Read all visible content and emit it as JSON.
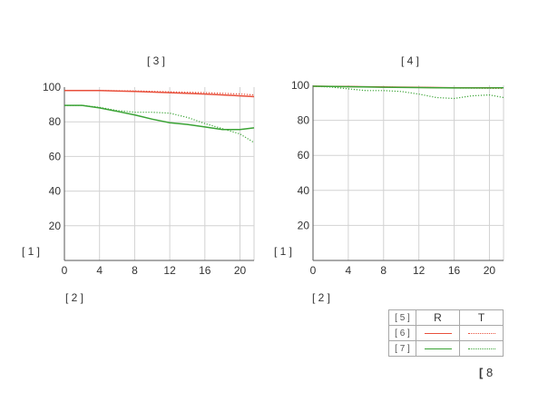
{
  "chart_data": [
    {
      "type": "line",
      "title": "[ 3 ]",
      "xlabel": "[ 2 ]",
      "ylabel": "[ 1 ]",
      "xlim": [
        0,
        21.6
      ],
      "ylim": [
        0,
        100
      ],
      "xticks": [
        0,
        4,
        8,
        12,
        16,
        20
      ],
      "yticks": [
        20,
        40,
        60,
        80,
        100
      ],
      "grid": true,
      "series": [
        {
          "name": "[ 6 ] R",
          "color": "#e8503c",
          "style": "solid",
          "x": [
            0,
            4,
            8,
            12,
            16,
            20,
            21.6
          ],
          "y": [
            98,
            98,
            97.5,
            96.8,
            96,
            95,
            94.5
          ]
        },
        {
          "name": "[ 6 ] T",
          "color": "#e8503c",
          "style": "dotted",
          "x": [
            0,
            4,
            8,
            12,
            16,
            20,
            21.6
          ],
          "y": [
            98,
            98,
            97.8,
            97.3,
            96.8,
            96,
            95.5
          ]
        },
        {
          "name": "[ 7 ] R",
          "color": "#3aa335",
          "style": "solid",
          "x": [
            0,
            2,
            4,
            6,
            8,
            10,
            12,
            14,
            16,
            18,
            20,
            21.6
          ],
          "y": [
            89.5,
            89.5,
            88,
            86,
            84,
            81.5,
            79.5,
            78.5,
            77,
            75.5,
            75.5,
            76.5
          ]
        },
        {
          "name": "[ 7 ] T",
          "color": "#3aa335",
          "style": "dotted",
          "x": [
            0,
            2,
            4,
            6,
            8,
            10,
            12,
            14,
            16,
            18,
            20,
            21.6
          ],
          "y": [
            89.5,
            89.5,
            88.3,
            86.5,
            85.5,
            85.5,
            85,
            82.5,
            79,
            76,
            73,
            68
          ]
        }
      ]
    },
    {
      "type": "line",
      "title": "[ 4 ]",
      "xlabel": "[ 2 ]",
      "ylabel": "[ 1 ]",
      "xlim": [
        0,
        21.6
      ],
      "ylim": [
        0,
        100
      ],
      "xticks": [
        0,
        4,
        8,
        12,
        16,
        20
      ],
      "yticks": [
        20,
        40,
        60,
        80,
        100
      ],
      "grid": true,
      "series": [
        {
          "name": "[ 6 ] R",
          "color": "#e8503c",
          "style": "solid",
          "x": [
            0,
            4,
            8,
            12,
            16,
            20,
            21.6
          ],
          "y": [
            99.5,
            99.3,
            99,
            98.8,
            98.6,
            98.6,
            98.6
          ]
        },
        {
          "name": "[ 6 ] T",
          "color": "#e8503c",
          "style": "dotted",
          "x": [
            0,
            4,
            8,
            12,
            16,
            20,
            21.6
          ],
          "y": [
            99.5,
            99.3,
            99,
            98.8,
            98.5,
            98.3,
            98.2
          ]
        },
        {
          "name": "[ 7 ] R",
          "color": "#3aa335",
          "style": "solid",
          "x": [
            0,
            4,
            8,
            12,
            16,
            20,
            21.6
          ],
          "y": [
            99.5,
            99.2,
            98.9,
            98.7,
            98.5,
            98.5,
            98.6
          ]
        },
        {
          "name": "[ 7 ] T",
          "color": "#3aa335",
          "style": "dotted",
          "x": [
            0,
            2,
            4,
            6,
            8,
            10,
            12,
            14,
            16,
            18,
            20,
            21.6
          ],
          "y": [
            99.5,
            99,
            98,
            97,
            97,
            96.5,
            95,
            93,
            92.5,
            94,
            94.5,
            93
          ]
        }
      ]
    }
  ],
  "legend": {
    "corner": "[ 5 ]",
    "col_r": "R",
    "col_t": "T",
    "rows": [
      {
        "label": "[ 6 ]",
        "color": "#e8503c"
      },
      {
        "label": "[ 7 ]",
        "color": "#3aa335"
      }
    ]
  },
  "footnote": "8"
}
